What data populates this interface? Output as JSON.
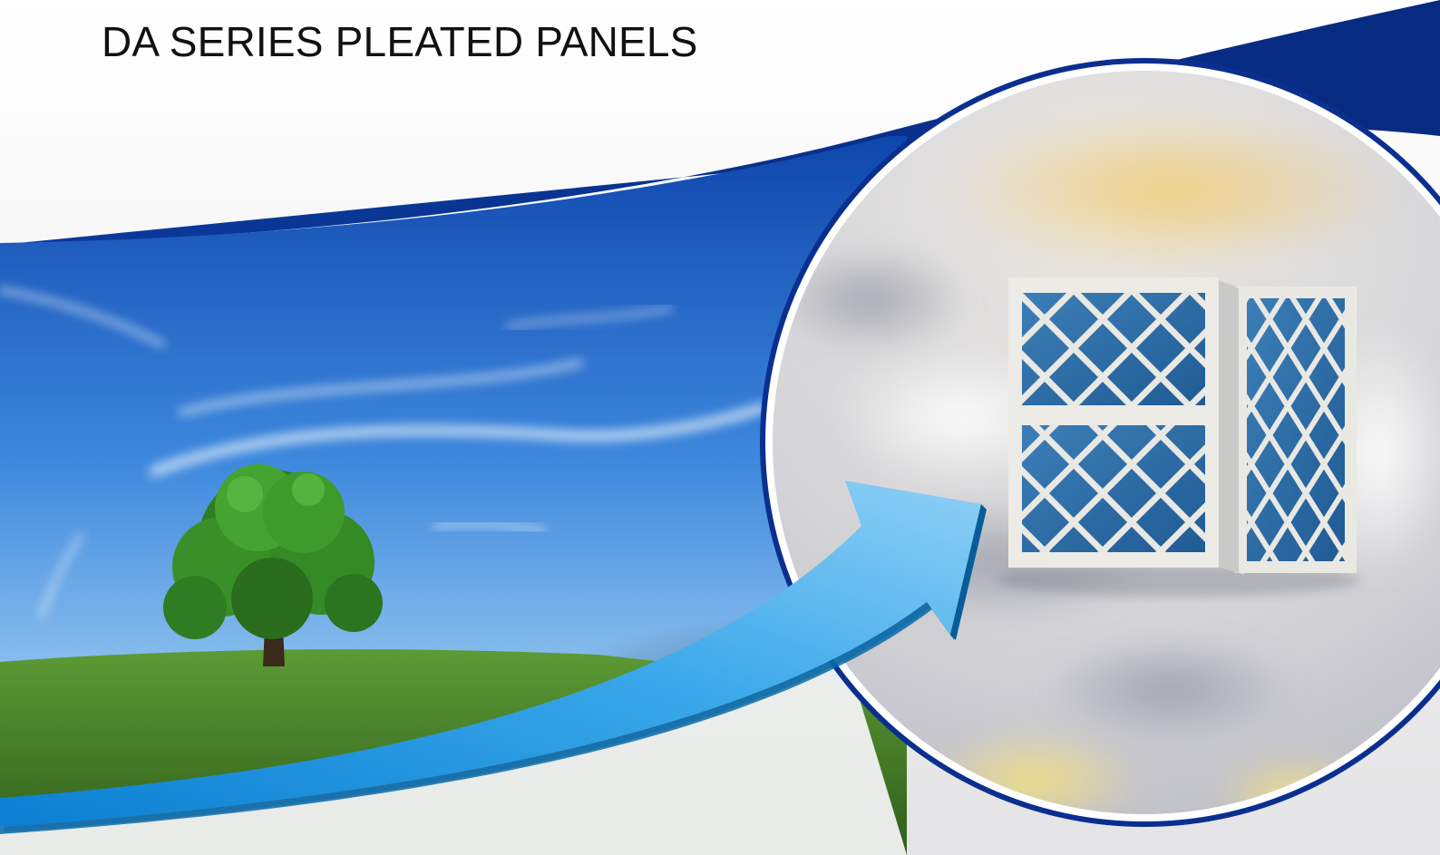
{
  "header": {
    "title": "DA SERIES PLEATED PANELS"
  },
  "colors": {
    "brand_blue": "#0a2f8f",
    "sky_top": "#1552b8",
    "sky_mid": "#3c86dc",
    "grass": "#4b8a2a",
    "arrow_light": "#7fc8f3",
    "arrow_dark": "#0a86d6",
    "filter_media": "#2f6fa8",
    "filter_frame": "#e7e7e4"
  },
  "images": {
    "landscape": "sky-and-tree-photo",
    "arrow": "curved-arrow-icon",
    "product": "pleated-panel-filter-photo"
  }
}
